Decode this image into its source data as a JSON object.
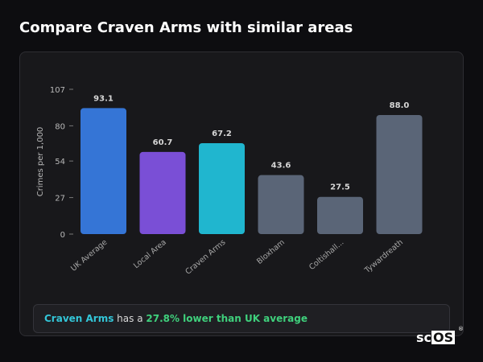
{
  "page": {
    "title": "Compare Craven Arms with similar areas"
  },
  "chart_data": {
    "type": "bar",
    "title": "",
    "xlabel": "",
    "ylabel": "Crimes per 1,000",
    "ylim": [
      0,
      107
    ],
    "yticks": [
      0,
      27,
      54,
      80,
      107
    ],
    "grid": false,
    "categories": [
      "UK Average",
      "Local Area",
      "Craven Arms",
      "Bloxham",
      "Coltishall...",
      "Tywardreath"
    ],
    "values": [
      93.1,
      60.7,
      67.2,
      43.6,
      27.5,
      88.0
    ],
    "value_labels": [
      "93.1",
      "60.7",
      "67.2",
      "43.6",
      "27.5",
      "88.0"
    ],
    "colors": [
      "#3575d6",
      "#7a4fd6",
      "#20b6cf",
      "#5a6577",
      "#5a6577",
      "#5a6577"
    ]
  },
  "callout": {
    "area": "Craven Arms",
    "middle": " has a ",
    "stat": "27.8% lower than UK average"
  },
  "brand": {
    "prefix": "sc",
    "suffix": "OS",
    "mark": "®"
  }
}
